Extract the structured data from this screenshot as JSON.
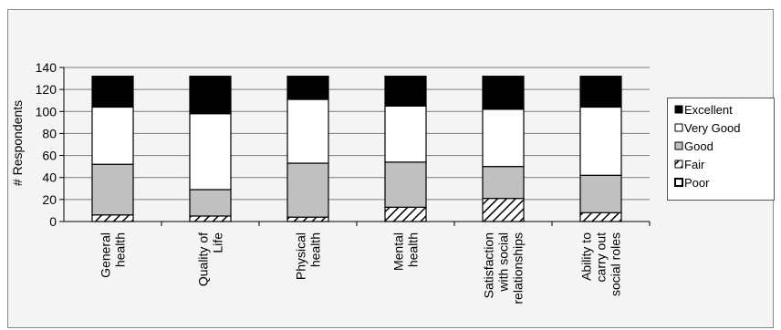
{
  "chart_data": {
    "type": "bar",
    "stacked": true,
    "title": "",
    "xlabel": "",
    "ylabel": "# Respondents",
    "ylim": [
      0,
      140
    ],
    "yticks": [
      0,
      20,
      40,
      60,
      80,
      100,
      120,
      140
    ],
    "grid": true,
    "legend_position": "right",
    "categories": [
      [
        "General",
        "health"
      ],
      [
        "Quality of",
        "Life"
      ],
      [
        "Physical",
        "health"
      ],
      [
        "Mental",
        "health"
      ],
      [
        "Satisfaction",
        "with social",
        "relationships"
      ],
      [
        "Ability to",
        "carry out",
        "social roles"
      ]
    ],
    "series": [
      {
        "name": "Poor",
        "fill": "box-white",
        "values": [
          0,
          0,
          0,
          0,
          0,
          0
        ]
      },
      {
        "name": "Fair",
        "fill": "hatch",
        "values": [
          6,
          5,
          4,
          13,
          21,
          8
        ]
      },
      {
        "name": "Good",
        "fill": "#c0c0c0",
        "values": [
          46,
          24,
          49,
          41,
          29,
          34
        ]
      },
      {
        "name": "Very Good",
        "fill": "#ffffff",
        "values": [
          52,
          69,
          58,
          51,
          52,
          62
        ]
      },
      {
        "name": "Excellent",
        "fill": "#000000",
        "values": [
          28,
          34,
          21,
          27,
          30,
          28
        ]
      }
    ],
    "legend_order": [
      "Excellent",
      "Very Good",
      "Good",
      "Fair",
      "Poor"
    ]
  }
}
